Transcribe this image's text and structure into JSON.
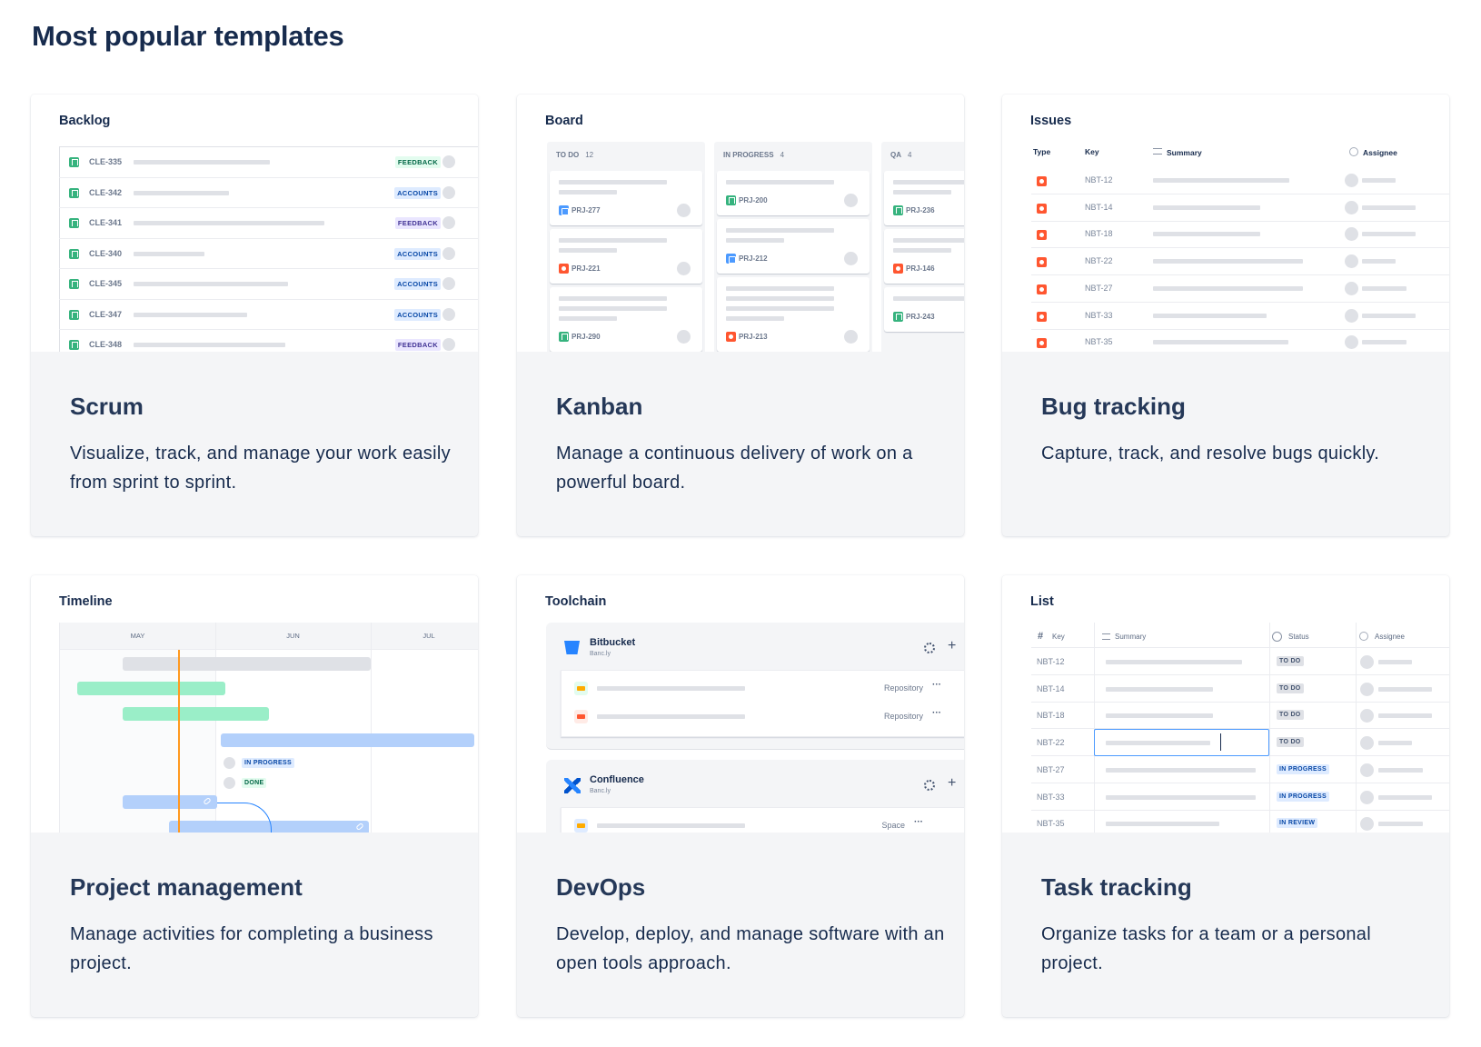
{
  "page": {
    "title": "Most popular templates"
  },
  "colors": {
    "story": "#36b37e",
    "bug": "#ff5630",
    "task": "#4c9aff",
    "selected_cell": "#4c9aff",
    "today_line": "#ff991f"
  },
  "templates": [
    {
      "name": "Scrum",
      "description": "Visualize, track, and manage your work easily from sprint to sprint.",
      "preview": {
        "kind": "backlog",
        "title": "Backlog",
        "rows": [
          {
            "key": "CLE-335",
            "tag": "FEEDBACK",
            "tag_color": "green"
          },
          {
            "key": "CLE-342",
            "tag": "ACCOUNTS",
            "tag_color": "blue"
          },
          {
            "key": "CLE-341",
            "tag": "FEEDBACK",
            "tag_color": "purple"
          },
          {
            "key": "CLE-340",
            "tag": "ACCOUNTS",
            "tag_color": "blue"
          },
          {
            "key": "CLE-345",
            "tag": "ACCOUNTS",
            "tag_color": "blue"
          },
          {
            "key": "CLE-347",
            "tag": "ACCOUNTS",
            "tag_color": "blue"
          },
          {
            "key": "CLE-348",
            "tag": "FEEDBACK",
            "tag_color": "purple"
          }
        ]
      }
    },
    {
      "name": "Kanban",
      "description": "Manage a continuous delivery of work on a powerful board.",
      "preview": {
        "kind": "board",
        "title": "Board",
        "columns": [
          {
            "name": "TO DO",
            "count": "12",
            "cards": [
              {
                "key": "PRJ-277",
                "type": "task"
              },
              {
                "key": "PRJ-221",
                "type": "bug"
              },
              {
                "key": "PRJ-290",
                "type": "story"
              }
            ]
          },
          {
            "name": "IN PROGRESS",
            "count": "4",
            "cards": [
              {
                "key": "PRJ-200",
                "type": "story"
              },
              {
                "key": "PRJ-212",
                "type": "task"
              },
              {
                "key": "PRJ-213",
                "type": "bug"
              }
            ]
          },
          {
            "name": "QA",
            "count": "4",
            "cards": [
              {
                "key": "PRJ-236",
                "type": "story"
              },
              {
                "key": "PRJ-146",
                "type": "bug"
              },
              {
                "key": "PRJ-243",
                "type": "story"
              }
            ]
          }
        ]
      }
    },
    {
      "name": "Bug tracking",
      "description": "Capture, track, and resolve bugs quickly.",
      "preview": {
        "kind": "issues",
        "title": "Issues",
        "headers": {
          "type": "Type",
          "key": "Key",
          "summary": "Summary",
          "assignee": "Assignee"
        },
        "rows": [
          {
            "key": "NBT-12",
            "type": "bug"
          },
          {
            "key": "NBT-14",
            "type": "bug"
          },
          {
            "key": "NBT-18",
            "type": "bug"
          },
          {
            "key": "NBT-22",
            "type": "bug"
          },
          {
            "key": "NBT-27",
            "type": "bug"
          },
          {
            "key": "NBT-33",
            "type": "bug"
          },
          {
            "key": "NBT-35",
            "type": "bug"
          }
        ]
      }
    },
    {
      "name": "Project management",
      "description": "Manage activities for completing a business project.",
      "preview": {
        "kind": "timeline",
        "title": "Timeline",
        "months": [
          "MAY",
          "JUN",
          "JUL"
        ],
        "statuses": [
          {
            "label": "IN PROGRESS",
            "color": "blue"
          },
          {
            "label": "DONE",
            "color": "green"
          }
        ]
      }
    },
    {
      "name": "DevOps",
      "description": "Develop, deploy, and manage software with an open tools approach.",
      "preview": {
        "kind": "toolchain",
        "title": "Toolchain",
        "groups": [
          {
            "tool": "Bitbucket",
            "org": "Banc.ly",
            "logo": "bitbucket",
            "items": [
              {
                "type": "Repository",
                "icon": "card"
              },
              {
                "type": "Repository",
                "icon": "island"
              }
            ]
          },
          {
            "tool": "Confluence",
            "org": "Banc.ly",
            "logo": "confluence",
            "items": [
              {
                "type": "Space",
                "icon": "card"
              }
            ]
          }
        ]
      }
    },
    {
      "name": "Task tracking",
      "description": "Organize tasks for a team or a personal project.",
      "preview": {
        "kind": "list",
        "title": "List",
        "headers": {
          "key": "Key",
          "summary": "Summary",
          "status": "Status",
          "assignee": "Assignee"
        },
        "rows": [
          {
            "key": "NBT-12",
            "status": "TO DO"
          },
          {
            "key": "NBT-14",
            "status": "TO DO"
          },
          {
            "key": "NBT-18",
            "status": "TO DO"
          },
          {
            "key": "NBT-22",
            "status": "TO DO",
            "selected": true
          },
          {
            "key": "NBT-27",
            "status": "IN PROGRESS"
          },
          {
            "key": "NBT-33",
            "status": "IN PROGRESS"
          },
          {
            "key": "NBT-35",
            "status": "IN REVIEW"
          }
        ]
      }
    }
  ]
}
